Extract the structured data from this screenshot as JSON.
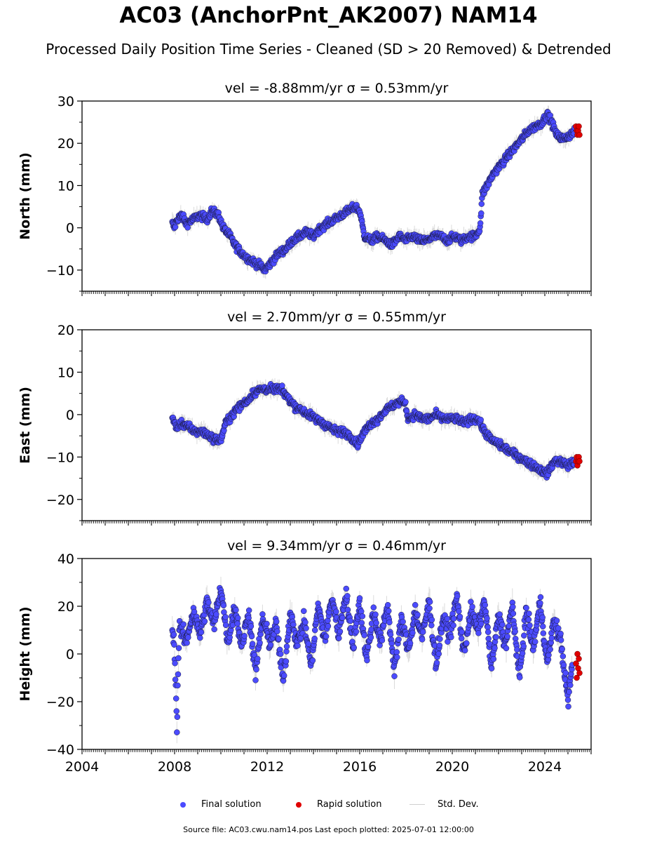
{
  "figure": {
    "title": "AC03 (AnchorPnt_AK2007) NAM14",
    "subtitle": "Processed Daily Position Time Series - Cleaned (SD > 20 Removed) & Detrended",
    "footer": "Source file: AC03.cwu.nam14.pos  Last epoch plotted: 2025-07-01 12:00:00"
  },
  "legend": {
    "final": "Final solution",
    "rapid": "Rapid solution",
    "std": "Std. Dev."
  },
  "colors": {
    "final": "#4b4bff",
    "rapid": "#e00000",
    "std": "#b0b0b0",
    "edge": "#1a1a40"
  },
  "chart_data": [
    {
      "type": "scatter",
      "title": "vel = -8.88mm/yr   σ = 0.53mm/yr",
      "xlabel": "",
      "ylabel": "North (mm)",
      "xlim": [
        2004,
        2026
      ],
      "ylim": [
        -15,
        30
      ],
      "yticks": [
        -10,
        0,
        10,
        20,
        30
      ],
      "xticks": [
        2004,
        2008,
        2012,
        2016,
        2020,
        2024
      ],
      "xtick_labels_shown": false,
      "series": [
        {
          "name": "Final solution",
          "x": [
            2007.9,
            2008.0,
            2008.1,
            2008.3,
            2008.5,
            2008.8,
            2009.1,
            2009.4,
            2009.6,
            2009.9,
            2010.1,
            2010.4,
            2010.6,
            2010.9,
            2011.1,
            2011.4,
            2011.7,
            2011.9,
            2012.2,
            2012.5,
            2012.8,
            2013.1,
            2013.4,
            2013.7,
            2014.0,
            2014.3,
            2014.6,
            2014.9,
            2015.2,
            2015.5,
            2015.8,
            2016.0,
            2016.2,
            2016.5,
            2016.8,
            2017.1,
            2017.4,
            2017.7,
            2018.0,
            2018.3,
            2018.6,
            2018.9,
            2019.2,
            2019.5,
            2019.8,
            2020.1,
            2020.4,
            2020.7,
            2021.0,
            2021.2,
            2021.3,
            2021.5,
            2021.8,
            2022.1,
            2022.4,
            2022.7,
            2023.0,
            2023.3,
            2023.6,
            2023.9,
            2024.1,
            2024.3,
            2024.5,
            2024.8,
            2025.1,
            2025.3
          ],
          "y": [
            1,
            0,
            2,
            3,
            1,
            2,
            3,
            2,
            4,
            3,
            0,
            -2,
            -4,
            -6,
            -7,
            -8,
            -9,
            -10,
            -8,
            -6,
            -5,
            -3,
            -2,
            -1,
            -2,
            0,
            1,
            2,
            3,
            4,
            5,
            4,
            -2,
            -3,
            -2,
            -3,
            -4,
            -2,
            -3,
            -2,
            -3,
            -3,
            -2,
            -2,
            -3,
            -2,
            -3,
            -2,
            -2,
            0,
            8,
            10,
            13,
            15,
            17,
            19,
            21,
            23,
            24,
            25,
            27,
            25,
            22,
            21,
            22,
            23
          ]
        },
        {
          "name": "Rapid solution",
          "x": [
            2025.35,
            2025.38,
            2025.41,
            2025.44,
            2025.47,
            2025.5
          ],
          "y": [
            24,
            23,
            22,
            23,
            24,
            22
          ]
        }
      ],
      "std_dev_mm": 1.5
    },
    {
      "type": "scatter",
      "title": "vel = 2.70mm/yr   σ = 0.55mm/yr",
      "xlabel": "",
      "ylabel": "East (mm)",
      "xlim": [
        2004,
        2026
      ],
      "ylim": [
        -25,
        20
      ],
      "yticks": [
        -20,
        -10,
        0,
        10,
        20
      ],
      "xticks": [
        2004,
        2008,
        2012,
        2016,
        2020,
        2024
      ],
      "xtick_labels_shown": false,
      "series": [
        {
          "name": "Final solution",
          "x": [
            2007.9,
            2008.1,
            2008.3,
            2008.6,
            2008.9,
            2009.2,
            2009.5,
            2009.8,
            2010.0,
            2010.2,
            2010.5,
            2010.8,
            2011.1,
            2011.4,
            2011.7,
            2012.0,
            2012.3,
            2012.6,
            2012.9,
            2013.2,
            2013.5,
            2013.8,
            2014.1,
            2014.4,
            2014.7,
            2015.0,
            2015.3,
            2015.6,
            2015.9,
            2016.2,
            2016.5,
            2016.8,
            2017.1,
            2017.4,
            2017.7,
            2017.95,
            2018.1,
            2018.4,
            2018.7,
            2019.0,
            2019.3,
            2019.6,
            2019.9,
            2020.2,
            2020.5,
            2020.8,
            2021.1,
            2021.4,
            2021.7,
            2022.0,
            2022.3,
            2022.6,
            2022.9,
            2023.2,
            2023.5,
            2023.8,
            2024.1,
            2024.4,
            2024.7,
            2025.0,
            2025.3
          ],
          "y": [
            -1,
            -3,
            -2,
            -3,
            -4,
            -4,
            -5,
            -6,
            -6,
            -2,
            0,
            2,
            3,
            5,
            6,
            6,
            6,
            6,
            4,
            2,
            1,
            0,
            -1,
            -2,
            -3,
            -4,
            -4,
            -5,
            -7,
            -4,
            -2,
            -1,
            1,
            2,
            3,
            3,
            -1,
            0,
            -1,
            -1,
            0,
            -1,
            -1,
            -1,
            -2,
            -1,
            -1,
            -4,
            -6,
            -7,
            -8,
            -9,
            -10,
            -11,
            -12,
            -13,
            -14,
            -11,
            -11,
            -12,
            -11
          ]
        },
        {
          "name": "Rapid solution",
          "x": [
            2025.35,
            2025.38,
            2025.41,
            2025.44,
            2025.47,
            2025.5
          ],
          "y": [
            -11,
            -10,
            -12,
            -11,
            -10,
            -11
          ]
        }
      ],
      "std_dev_mm": 1.5
    },
    {
      "type": "scatter",
      "title": "vel = 9.34mm/yr   σ = 0.46mm/yr",
      "xlabel": "",
      "ylabel": "Height (mm)",
      "xlim": [
        2004,
        2026
      ],
      "ylim": [
        -40,
        40
      ],
      "yticks": [
        -40,
        -20,
        0,
        20,
        40
      ],
      "xticks": [
        2004,
        2008,
        2012,
        2016,
        2020,
        2024
      ],
      "xtick_labels_shown": true,
      "series": [
        {
          "name": "Final solution",
          "x": [
            2007.9,
            2008.0,
            2008.1,
            2008.2,
            2008.5,
            2008.8,
            2009.1,
            2009.4,
            2009.7,
            2010.0,
            2010.3,
            2010.6,
            2010.9,
            2011.2,
            2011.5,
            2011.8,
            2012.1,
            2012.4,
            2012.7,
            2013.0,
            2013.3,
            2013.6,
            2013.9,
            2014.2,
            2014.5,
            2014.8,
            2015.1,
            2015.4,
            2015.7,
            2016.0,
            2016.3,
            2016.6,
            2016.9,
            2017.2,
            2017.5,
            2017.8,
            2018.1,
            2018.4,
            2018.7,
            2019.0,
            2019.3,
            2019.6,
            2019.9,
            2020.2,
            2020.5,
            2020.8,
            2021.1,
            2021.4,
            2021.7,
            2022.0,
            2022.3,
            2022.6,
            2022.9,
            2023.2,
            2023.5,
            2023.8,
            2024.1,
            2024.4,
            2024.7,
            2025.0,
            2025.2
          ],
          "y": [
            10,
            2,
            -30,
            12,
            5,
            18,
            8,
            22,
            12,
            28,
            5,
            20,
            3,
            18,
            -8,
            15,
            5,
            12,
            -12,
            18,
            4,
            14,
            -5,
            20,
            6,
            24,
            8,
            26,
            3,
            22,
            -2,
            18,
            5,
            20,
            -6,
            14,
            2,
            18,
            7,
            22,
            -4,
            15,
            8,
            24,
            0,
            18,
            10,
            22,
            -6,
            16,
            4,
            20,
            -10,
            18,
            2,
            22,
            -4,
            14,
            5,
            -20,
            -3
          ]
        },
        {
          "name": "Rapid solution",
          "x": [
            2025.35,
            2025.38,
            2025.41,
            2025.44,
            2025.47,
            2025.5
          ],
          "y": [
            -4,
            -10,
            0,
            -6,
            -2,
            -8
          ]
        }
      ],
      "std_dev_mm": 4
    }
  ]
}
